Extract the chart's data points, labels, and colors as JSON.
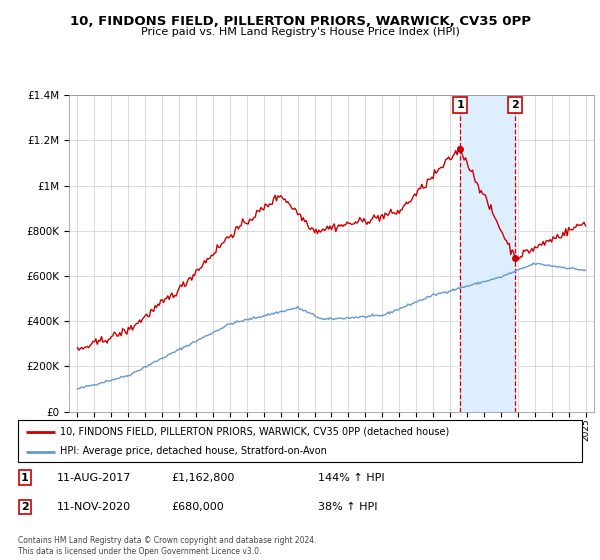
{
  "title": "10, FINDONS FIELD, PILLERTON PRIORS, WARWICK, CV35 0PP",
  "subtitle": "Price paid vs. HM Land Registry's House Price Index (HPI)",
  "legend_line1": "10, FINDONS FIELD, PILLERTON PRIORS, WARWICK, CV35 0PP (detached house)",
  "legend_line2": "HPI: Average price, detached house, Stratford-on-Avon",
  "sale1_date": "11-AUG-2017",
  "sale1_price": "£1,162,800",
  "sale1_hpi": "144% ↑ HPI",
  "sale2_date": "11-NOV-2020",
  "sale2_price": "£680,000",
  "sale2_hpi": "38% ↑ HPI",
  "footer": "Contains HM Land Registry data © Crown copyright and database right 2024.\nThis data is licensed under the Open Government Licence v3.0.",
  "sale1_x": 2017.6,
  "sale1_y": 1162800,
  "sale2_x": 2020.85,
  "sale2_y": 680000,
  "red_color": "#cc0000",
  "blue_color": "#6699cc",
  "shaded_color": "#ddeeff",
  "ylim": [
    0,
    1400000
  ],
  "xlim": [
    1994.5,
    2025.5
  ]
}
